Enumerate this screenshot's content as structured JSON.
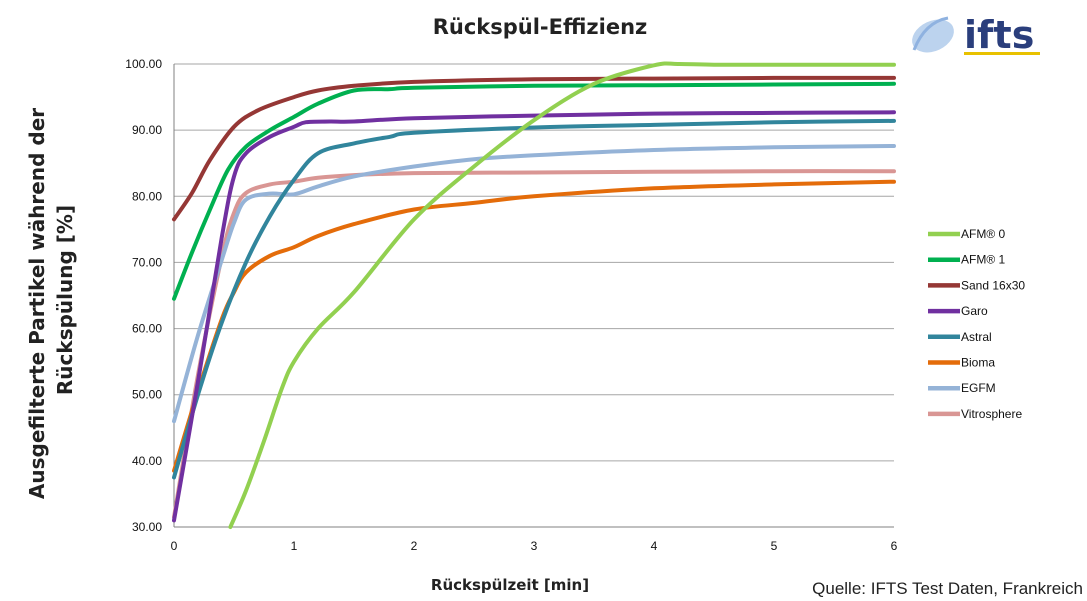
{
  "chart_data": {
    "type": "line",
    "title": "Rückspül-Effizienz",
    "xlabel": "Rückspülzeit [min]",
    "ylabel": "Ausgefilterte Partikel während der Rückspülung [%]",
    "ylabel_lines": [
      "Ausgefilterte Partikel während der",
      "Rückspülung [%]"
    ],
    "xlim": [
      0,
      6
    ],
    "ylim": [
      30,
      100
    ],
    "x_ticks": [
      "0",
      "1",
      "2",
      "3",
      "4",
      "5",
      "6"
    ],
    "y_ticks": [
      "30.00",
      "40.00",
      "50.00",
      "60.00",
      "70.00",
      "80.00",
      "90.00",
      "100.00"
    ],
    "grid": "horizontal",
    "legend_position": "right",
    "series": [
      {
        "name": "AFM® 0",
        "color": "#92d050",
        "x": [
          0.47,
          0.6,
          0.75,
          0.9,
          1.0,
          1.2,
          1.5,
          2.0,
          2.5,
          3.0,
          3.5,
          4.0,
          4.2,
          4.5,
          5.0,
          6.0
        ],
        "y": [
          30,
          35.5,
          43,
          51,
          55,
          60,
          65.5,
          76.5,
          84.5,
          91.5,
          97,
          99.8,
          100,
          99.9,
          99.9,
          99.9
        ]
      },
      {
        "name": "AFM® 1",
        "color": "#00b050",
        "x": [
          0,
          0.15,
          0.3,
          0.45,
          0.6,
          0.8,
          1.0,
          1.2,
          1.5,
          1.8,
          2.0,
          3.0,
          4.0,
          5.0,
          6.0
        ],
        "y": [
          64.5,
          71.5,
          78,
          84,
          87.5,
          90,
          92,
          94,
          96,
          96.2,
          96.4,
          96.7,
          96.8,
          96.9,
          97
        ]
      },
      {
        "name": "Sand 16x30",
        "color": "#953735",
        "x": [
          0,
          0.15,
          0.3,
          0.5,
          0.7,
          1.0,
          1.2,
          1.5,
          2.0,
          3.0,
          4.0,
          5.0,
          6.0
        ],
        "y": [
          76.5,
          80.5,
          85.5,
          90.5,
          93,
          95,
          96,
          96.7,
          97.3,
          97.7,
          97.8,
          97.9,
          97.9
        ]
      },
      {
        "name": "Garo",
        "color": "#7030a0",
        "x": [
          0,
          0.2,
          0.4,
          0.5,
          0.6,
          0.8,
          1.0,
          1.1,
          1.3,
          1.5,
          2.0,
          3.0,
          4.0,
          5.0,
          6.0
        ],
        "y": [
          31,
          52,
          74,
          83,
          86.5,
          89,
          90.5,
          91.2,
          91.3,
          91.3,
          91.8,
          92.2,
          92.5,
          92.6,
          92.7
        ]
      },
      {
        "name": "Astral",
        "color": "#31859c",
        "x": [
          0,
          0.2,
          0.4,
          0.6,
          0.8,
          1.0,
          1.2,
          1.5,
          1.8,
          2.0,
          3.0,
          4.0,
          5.0,
          6.0
        ],
        "y": [
          37.5,
          50,
          61,
          70,
          77,
          82.5,
          86.5,
          88,
          89,
          89.6,
          90.4,
          90.8,
          91.2,
          91.4
        ]
      },
      {
        "name": "Bioma",
        "color": "#e46c0a",
        "x": [
          0,
          0.2,
          0.4,
          0.5,
          0.6,
          0.8,
          1.0,
          1.2,
          1.5,
          2.0,
          2.5,
          3.0,
          4.0,
          5.0,
          6.0
        ],
        "y": [
          38.5,
          50.5,
          61.5,
          65.5,
          68.5,
          71,
          72.3,
          74,
          75.8,
          78,
          79,
          80,
          81.2,
          81.8,
          82.2
        ]
      },
      {
        "name": "EGFM",
        "color": "#95b3d7",
        "x": [
          0,
          0.2,
          0.4,
          0.5,
          0.6,
          0.8,
          1.0,
          1.2,
          1.5,
          2.0,
          2.5,
          3.0,
          4.0,
          5.0,
          6.0
        ],
        "y": [
          46,
          59,
          70.5,
          76,
          79.5,
          80.4,
          80.3,
          81.5,
          83,
          84.5,
          85.6,
          86.2,
          87,
          87.4,
          87.6
        ]
      },
      {
        "name": "Vitrosphere",
        "color": "#d99694",
        "x": [
          0,
          0.2,
          0.4,
          0.5,
          0.6,
          0.8,
          1.0,
          1.2,
          1.5,
          2.0,
          3.0,
          4.0,
          5.0,
          6.0
        ],
        "y": [
          31.5,
          53,
          71,
          77.5,
          80.5,
          81.8,
          82.2,
          82.8,
          83.2,
          83.5,
          83.6,
          83.7,
          83.8,
          83.8
        ]
      }
    ]
  },
  "source_note": "Quelle: IFTS Test Daten, Frankreich",
  "logo": {
    "text": "ifts"
  }
}
